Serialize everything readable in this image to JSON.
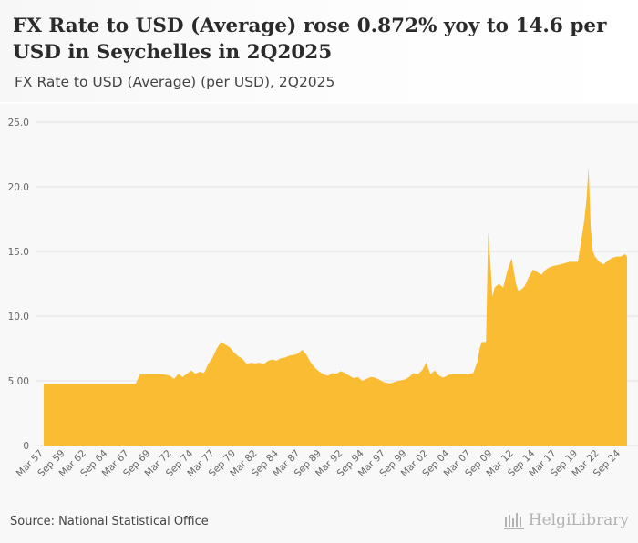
{
  "header": {
    "title": "FX Rate to USD (Average) rose 0.872% yoy to 14.6 per USD in Seychelles in 2Q2025",
    "subtitle": "FX Rate to USD (Average) (per USD), 2Q2025"
  },
  "footer": {
    "source": "Source: National Statistical Office",
    "brand": "HelgiLibrary"
  },
  "colors": {
    "area_fill": "#f9bc33",
    "grid": "#e2e2e2",
    "axis_text": "#666666"
  },
  "chart_data": {
    "type": "area",
    "title": "FX Rate to USD (Average) (per USD), 2Q2025",
    "xlabel": "",
    "ylabel": "",
    "ylim": [
      0,
      25
    ],
    "y_ticks": [
      "0",
      "5.00",
      "10.0",
      "15.0",
      "20.0",
      "25.0"
    ],
    "y_tick_values": [
      0,
      5,
      10,
      15,
      20,
      25
    ],
    "x_tick_labels": [
      "Mar 57",
      "Sep 59",
      "Mar 62",
      "Sep 64",
      "Mar 67",
      "Sep 69",
      "Mar 72",
      "Sep 74",
      "Mar 77",
      "Sep 79",
      "Mar 82",
      "Sep 84",
      "Mar 87",
      "Sep 89",
      "Mar 92",
      "Sep 94",
      "Mar 97",
      "Sep 99",
      "Mar 02",
      "Sep 04",
      "Mar 07",
      "Sep 09",
      "Mar 12",
      "Sep 14",
      "Mar 17",
      "Sep 19",
      "Mar 22",
      "Sep 24"
    ],
    "x_tick_years": [
      1957.0,
      1959.5,
      1962.0,
      1964.5,
      1967.0,
      1969.5,
      1972.0,
      1974.5,
      1977.0,
      1979.5,
      1982.0,
      1984.5,
      1987.0,
      1989.5,
      1992.0,
      1994.5,
      1997.0,
      1999.5,
      2002.0,
      2004.5,
      2007.0,
      2009.5,
      2012.0,
      2014.5,
      2017.0,
      2019.5,
      2022.0,
      2024.5
    ],
    "x_range": [
      1957.0,
      2025.25
    ],
    "series": [
      {
        "name": "FX Rate to USD (Average)",
        "x": [
          1957.0,
          1967.75,
          1968.25,
          1971.0,
          1971.75,
          1972.25,
          1972.75,
          1973.25,
          1973.75,
          1974.25,
          1974.75,
          1975.25,
          1975.75,
          1976.25,
          1976.75,
          1977.25,
          1977.75,
          1978.25,
          1978.75,
          1979.25,
          1979.75,
          1980.25,
          1980.75,
          1981.25,
          1981.75,
          1982.25,
          1982.75,
          1983.25,
          1983.75,
          1984.25,
          1984.75,
          1985.25,
          1985.75,
          1986.25,
          1986.75,
          1987.25,
          1987.75,
          1988.25,
          1988.75,
          1989.25,
          1989.75,
          1990.25,
          1990.75,
          1991.25,
          1991.75,
          1992.25,
          1992.75,
          1993.25,
          1993.75,
          1994.25,
          1994.75,
          1995.25,
          1995.75,
          1996.25,
          1996.75,
          1997.5,
          1998.5,
          1999.25,
          1999.75,
          2000.25,
          2000.75,
          2001.25,
          2001.75,
          2002.25,
          2002.75,
          2003.25,
          2003.75,
          2004.5,
          2005.5,
          2006.5,
          2007.25,
          2007.75,
          2008.0,
          2008.25,
          2008.5,
          2008.75,
          2009.0,
          2009.25,
          2009.5,
          2009.75,
          2010.25,
          2010.75,
          2011.25,
          2011.75,
          2012.25,
          2012.5,
          2012.75,
          2013.25,
          2013.75,
          2014.25,
          2014.75,
          2015.25,
          2015.75,
          2016.25,
          2016.75,
          2017.5,
          2018.5,
          2019.5,
          2020.25,
          2020.5,
          2020.75,
          2021.0,
          2021.25,
          2021.5,
          2021.75,
          2022.0,
          2022.5,
          2023.0,
          2023.5,
          2024.0,
          2024.5,
          2025.0,
          2025.25
        ],
        "values": [
          4.76,
          4.76,
          5.5,
          5.5,
          5.4,
          5.15,
          5.55,
          5.3,
          5.55,
          5.8,
          5.55,
          5.7,
          5.6,
          6.3,
          6.8,
          7.5,
          8.0,
          7.8,
          7.6,
          7.2,
          6.9,
          6.7,
          6.3,
          6.4,
          6.35,
          6.4,
          6.3,
          6.55,
          6.65,
          6.55,
          6.75,
          6.8,
          6.95,
          7.0,
          7.1,
          7.4,
          7.0,
          6.4,
          6.0,
          5.7,
          5.5,
          5.4,
          5.6,
          5.55,
          5.75,
          5.6,
          5.4,
          5.2,
          5.3,
          5.0,
          5.15,
          5.3,
          5.25,
          5.1,
          4.9,
          4.8,
          5.0,
          5.1,
          5.3,
          5.6,
          5.5,
          5.8,
          6.4,
          5.5,
          5.8,
          5.4,
          5.25,
          5.5,
          5.5,
          5.5,
          5.6,
          6.5,
          7.5,
          8.0,
          8.0,
          8.0,
          16.5,
          14.2,
          11.5,
          12.2,
          12.5,
          12.2,
          13.5,
          14.5,
          12.5,
          12.0,
          12.0,
          12.3,
          13.0,
          13.6,
          13.4,
          13.2,
          13.6,
          13.8,
          13.9,
          14.0,
          14.2,
          14.2,
          17.4,
          19.0,
          21.5,
          16.8,
          15.0,
          14.6,
          14.4,
          14.2,
          14.0,
          14.3,
          14.5,
          14.6,
          14.6,
          14.8,
          14.6
        ]
      }
    ]
  }
}
